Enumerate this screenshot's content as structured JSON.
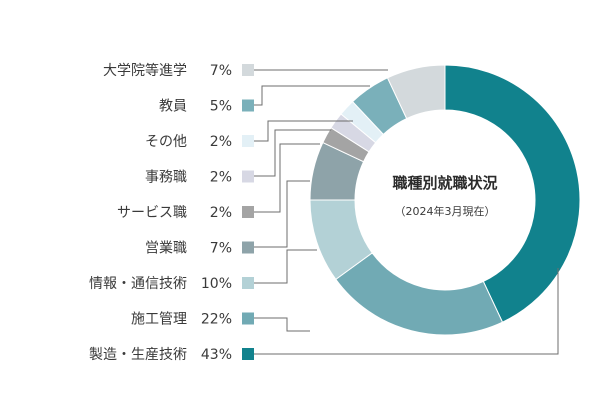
{
  "chart_data": {
    "type": "pie",
    "title": "職種別就職状況",
    "subtitle": "（2024年3月現在）",
    "categories": [
      "製造・生産技術",
      "施工管理",
      "情報・通信技術",
      "営業職",
      "サービス職",
      "事務職",
      "その他",
      "教員",
      "大学院等進学"
    ],
    "values": [
      43,
      22,
      10,
      7,
      2,
      2,
      2,
      5,
      7
    ],
    "value_labels": [
      "43%",
      "22%",
      "10%",
      "7%",
      "2%",
      "2%",
      "2%",
      "5%",
      "7%"
    ],
    "colors": [
      "#11828d",
      "#71aab4",
      "#b3d1d6",
      "#8ea3a9",
      "#a4a4a4",
      "#d7d8e4",
      "#e3f0f6",
      "#7ab0ba",
      "#d3d9dc"
    ],
    "legend_order": [
      8,
      7,
      6,
      5,
      4,
      3,
      2,
      1,
      0
    ],
    "legend_position": "left"
  }
}
